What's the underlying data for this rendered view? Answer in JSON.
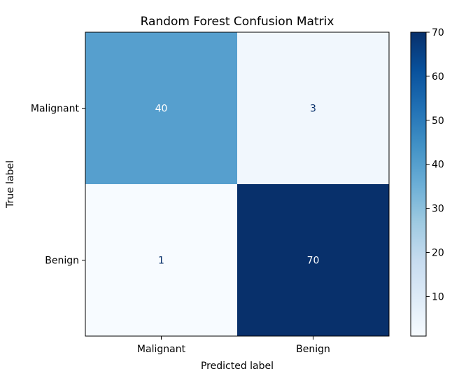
{
  "chart_data": {
    "type": "heatmap",
    "title": "Random Forest Confusion Matrix",
    "xlabel": "Predicted label",
    "ylabel": "True label",
    "x_categories": [
      "Malignant",
      "Benign"
    ],
    "y_categories": [
      "Malignant",
      "Benign"
    ],
    "values": [
      [
        40,
        3
      ],
      [
        1,
        70
      ]
    ],
    "colormap": "Blues",
    "colorbar": {
      "range": [
        1,
        70
      ],
      "ticks": [
        10,
        20,
        30,
        40,
        50,
        60,
        70
      ]
    },
    "grid": false
  }
}
